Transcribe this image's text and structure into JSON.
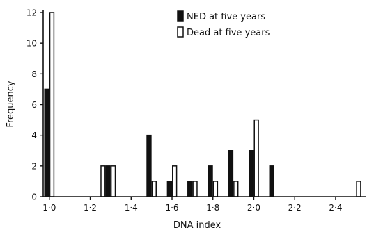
{
  "chart_data": {
    "type": "bar",
    "title": "",
    "xlabel": "DNA index",
    "ylabel": "Frequency",
    "xlim": [
      0.97,
      2.55
    ],
    "ylim": [
      0,
      12
    ],
    "x_ticks": [
      1.0,
      1.2,
      1.4,
      1.6,
      1.8,
      2.0,
      2.2,
      2.4
    ],
    "x_tick_labels": [
      "1·0",
      "1·2",
      "1·4",
      "1·6",
      "1·8",
      "2·0",
      "2·2",
      "2·4"
    ],
    "y_ticks": [
      0,
      2,
      4,
      6,
      8,
      10,
      12
    ],
    "y_tick_labels": [
      "0",
      "2",
      "4",
      "6",
      "8",
      "10",
      "12"
    ],
    "grid": false,
    "legend_position": "top-right",
    "bin_width": 0.05,
    "series": [
      {
        "name": "NED at five years",
        "fill": "solid",
        "color": "#111111",
        "points": [
          {
            "x": 1.0,
            "y": 7
          },
          {
            "x": 1.3,
            "y": 2
          },
          {
            "x": 1.5,
            "y": 4
          },
          {
            "x": 1.6,
            "y": 1
          },
          {
            "x": 1.7,
            "y": 1
          },
          {
            "x": 1.8,
            "y": 2
          },
          {
            "x": 1.9,
            "y": 3
          },
          {
            "x": 2.0,
            "y": 3
          },
          {
            "x": 2.1,
            "y": 2
          }
        ]
      },
      {
        "name": "Dead at five years",
        "fill": "open",
        "color": "#111111",
        "points": [
          {
            "x": 1.0,
            "y": 12
          },
          {
            "x": 1.25,
            "y": 2
          },
          {
            "x": 1.3,
            "y": 2
          },
          {
            "x": 1.5,
            "y": 1
          },
          {
            "x": 1.6,
            "y": 2
          },
          {
            "x": 1.7,
            "y": 1
          },
          {
            "x": 1.8,
            "y": 1
          },
          {
            "x": 1.9,
            "y": 1
          },
          {
            "x": 2.0,
            "y": 5
          },
          {
            "x": 2.5,
            "y": 1
          }
        ]
      }
    ]
  }
}
